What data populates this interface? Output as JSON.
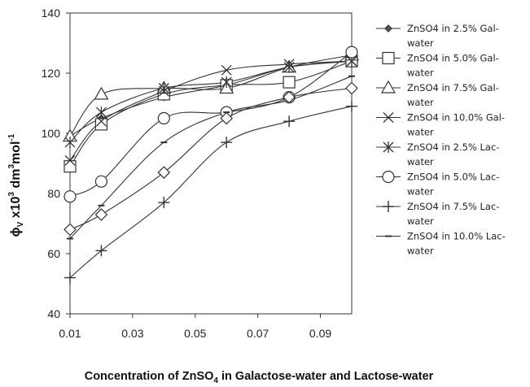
{
  "chart_data": {
    "type": "line",
    "xlabel": "Concentration of ZnSO",
    "xlabel_sub": "4",
    "xlabel_rest": " in Galactose-water and Lactose-water",
    "ylabel_phi": "ϕ",
    "ylabel_phi_sub": "V",
    "ylabel_mid": " x10",
    "ylabel_sup1": "3",
    "ylabel_units": " dm",
    "ylabel_sup2": "3",
    "ylabel_mol": "mol",
    "ylabel_sup3": "-1",
    "xlim": [
      0.01,
      0.1
    ],
    "ylim": [
      40,
      140
    ],
    "x_ticks": [
      0.01,
      0.03,
      0.05,
      0.07,
      0.09
    ],
    "x_tick_labels": [
      "0.01",
      "0.03",
      "0.05",
      "0.07",
      "0.09"
    ],
    "y_ticks": [
      40,
      60,
      80,
      100,
      120,
      140
    ],
    "y_tick_labels": [
      "40",
      "60",
      "80",
      "100",
      "120",
      "140"
    ],
    "grid": false,
    "legend_position": "right",
    "x": [
      0.01,
      0.02,
      0.04,
      0.06,
      0.08,
      0.1
    ],
    "series": [
      {
        "name": "ZnSO4 in 2.5% Gal-water",
        "legend_lines": [
          "ZnSO4 in 2.5% Gal-",
          "water"
        ],
        "marker": "diamond-small",
        "values": [
          99,
          105,
          112,
          116,
          122,
          124
        ]
      },
      {
        "name": "ZnSO4 in 5.0% Gal-water",
        "legend_lines": [
          "ZnSO4 in 5.0% Gal-",
          "water"
        ],
        "marker": "square",
        "values": [
          89,
          103,
          113,
          116,
          117,
          124
        ]
      },
      {
        "name": "ZnSO4 in 7.5% Gal-water",
        "legend_lines": [
          "ZnSO4 in 7.5% Gal-",
          "water"
        ],
        "marker": "triangle",
        "values": [
          99,
          113,
          115,
          115,
          122,
          126
        ]
      },
      {
        "name": "ZnSO4 in 10.0% Gal-water",
        "legend_lines": [
          "ZnSO4 in 10.0% Gal-",
          "water"
        ],
        "marker": "x",
        "values": [
          91,
          104,
          114,
          121,
          123,
          124
        ]
      },
      {
        "name": "ZnSO4 in 2.5% Lac-water",
        "legend_lines": [
          "ZnSO4 in 2.5% Lac-",
          "water"
        ],
        "marker": "star",
        "values": [
          97,
          107,
          115,
          117,
          122,
          124
        ]
      },
      {
        "name": "ZnSO4 in 5.0% Lac-water",
        "legend_lines": [
          "ZnSO4 in 5.0% Lac-",
          "water"
        ],
        "marker": "circle",
        "values": [
          79,
          84,
          105,
          107,
          112,
          127
        ]
      },
      {
        "name": "ZnSO4 in 7.5% Lac-water",
        "legend_lines": [
          "ZnSO4 in 7.5% Lac-",
          "water"
        ],
        "marker": "plus",
        "values": [
          52,
          61,
          77,
          97,
          104,
          109
        ]
      },
      {
        "name": "ZnSO4 in 10.0% Lac-water",
        "legend_lines": [
          "ZnSO4 in 10.0% Lac-",
          "water"
        ],
        "marker": "dash",
        "values": [
          65,
          76,
          97,
          107,
          111,
          119
        ]
      },
      {
        "name": "ZnSO4 in 2.5% Gal-water (open diamond)",
        "legend": false,
        "marker": "diamond-large",
        "values": [
          68,
          73,
          87,
          105,
          112,
          115
        ]
      }
    ]
  }
}
